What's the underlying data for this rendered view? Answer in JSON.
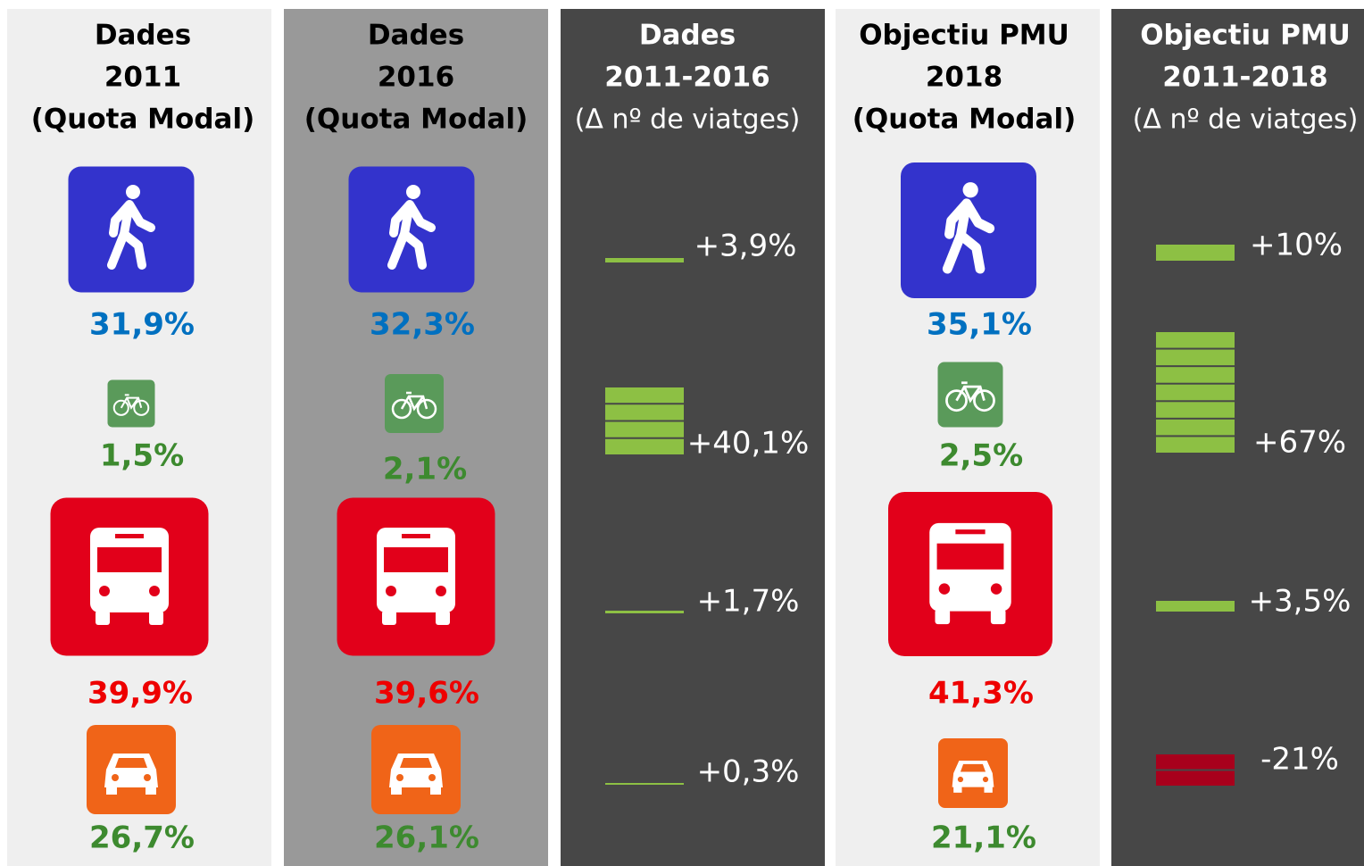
{
  "columns": [
    {
      "title": [
        "Dades",
        "2011",
        "(Quota Modal)"
      ],
      "items": [
        {
          "label": "31,9%"
        },
        {
          "label": "1,5%"
        },
        {
          "label": "39,9%"
        },
        {
          "label": "26,7%"
        }
      ]
    },
    {
      "title": [
        "Dades",
        "2016",
        "(Quota Modal)"
      ],
      "items": [
        {
          "label": "32,3%"
        },
        {
          "label": "2,1%"
        },
        {
          "label": "39,6%"
        },
        {
          "label": "26,1%"
        }
      ]
    },
    {
      "title": [
        "Dades",
        "2011-2016",
        "(Δ nº de viatges)"
      ],
      "items": [
        {
          "label": "+3,9%"
        },
        {
          "label": "+40,1%"
        },
        {
          "label": "+1,7%"
        },
        {
          "label": "+0,3%"
        }
      ]
    },
    {
      "title": [
        "Objectiu PMU",
        "2018",
        "(Quota Modal)"
      ],
      "items": [
        {
          "label": "35,1%"
        },
        {
          "label": "2,5%"
        },
        {
          "label": "41,3%"
        },
        {
          "label": "21,1%"
        }
      ]
    },
    {
      "title": [
        "Objectiu PMU",
        "2011-2018",
        "(Δ nº de viatges)"
      ],
      "items": [
        {
          "label": "+10%"
        },
        {
          "label": "+67%"
        },
        {
          "label": "+3,5%"
        },
        {
          "label": "-21%"
        }
      ]
    }
  ]
}
